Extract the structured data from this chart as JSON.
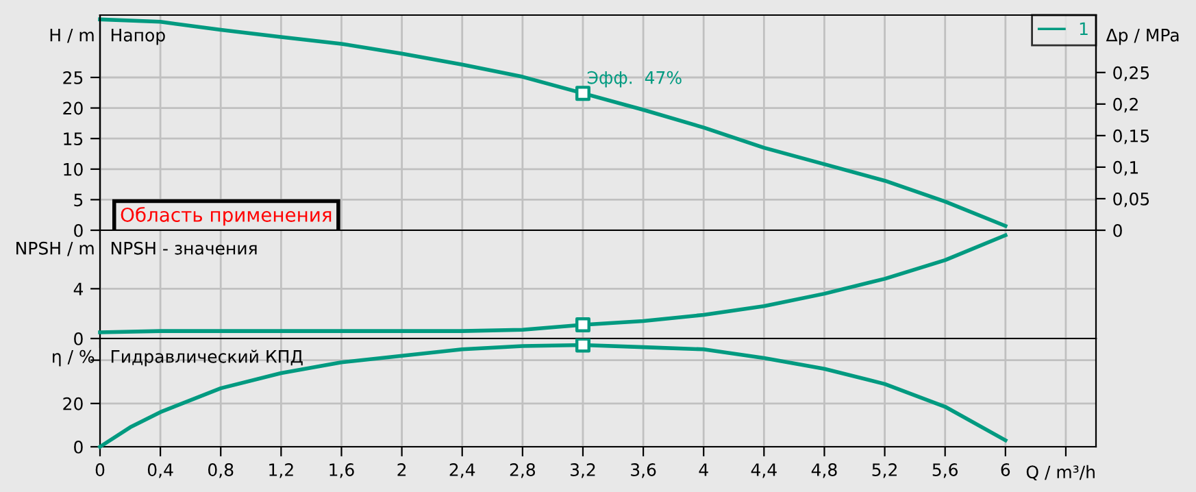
{
  "chart_data": [
    {
      "type": "line",
      "ylabel": "H / m",
      "y2label": "Δp / MPa",
      "annotations": [
        "Напор",
        {
          "text": "Эфф.  47%",
          "x": 3.2,
          "y": 22.4
        },
        "Область применения"
      ],
      "legend": "top right",
      "grid": true,
      "tick_labels": "y",
      "line_style": "solid",
      "x": [
        0,
        0.4,
        0.8,
        1.2,
        1.6,
        2.0,
        2.4,
        2.8,
        3.2,
        3.6,
        4.0,
        4.4,
        4.8,
        5.2,
        5.6,
        6.0
      ],
      "series": [
        {
          "name": "1",
          "color": "#009a80",
          "values": [
            34.5,
            34.1,
            32.8,
            31.6,
            30.5,
            28.9,
            27.1,
            25.1,
            22.4,
            19.7,
            16.8,
            13.5,
            10.8,
            8.1,
            4.7,
            0.7
          ]
        },
        {
          "type": "scatter",
          "marker": "square",
          "color": "#009a80",
          "values": [
            null,
            null,
            null,
            null,
            null,
            null,
            null,
            null,
            22.4,
            null,
            null,
            null,
            null,
            null,
            null,
            null
          ]
        }
      ],
      "xlim": [
        0,
        6.6
      ],
      "xticks": [
        0,
        0.4,
        0.8,
        1.2,
        1.6,
        2,
        2.4,
        2.8,
        3.2,
        3.6,
        4,
        4.4,
        4.8,
        5.2,
        5.6,
        6,
        6.4
      ],
      "ylim": [
        0,
        35.2
      ],
      "yticks": [
        0,
        5,
        10,
        15,
        20,
        25
      ],
      "y2lim": [
        0,
        0.341
      ],
      "y2ticks": [
        {
          "value": 0,
          "label": "0"
        },
        {
          "value": 0.05,
          "label": "0,05"
        },
        {
          "value": 0.1,
          "label": "0,1"
        },
        {
          "value": 0.15,
          "label": "0,15"
        },
        {
          "value": 0.2,
          "label": "0,2"
        },
        {
          "value": 0.25,
          "label": "0,25"
        }
      ]
    },
    {
      "type": "line",
      "ylabel": "NPSH / m",
      "annotations": [
        "NPSH - значения"
      ],
      "grid": true,
      "tick_labels": "y",
      "line_style": "solid",
      "x": [
        0,
        0.4,
        0.8,
        1.2,
        1.6,
        2.0,
        2.4,
        2.8,
        3.2,
        3.6,
        4.0,
        4.4,
        4.8,
        5.2,
        5.6,
        6.0
      ],
      "series": [
        {
          "color": "#009a80",
          "values": [
            0.5,
            0.6,
            0.6,
            0.6,
            0.6,
            0.6,
            0.6,
            0.7,
            1.1,
            1.4,
            1.9,
            2.6,
            3.6,
            4.8,
            6.3,
            8.3
          ]
        },
        {
          "type": "scatter",
          "marker": "square",
          "color": "#009a80",
          "values": [
            null,
            null,
            null,
            null,
            null,
            null,
            null,
            null,
            1.1,
            null,
            null,
            null,
            null,
            null,
            null,
            null
          ]
        }
      ],
      "xlim": [
        0,
        6.6
      ],
      "xticks": [
        0,
        0.4,
        0.8,
        1.2,
        1.6,
        2,
        2.4,
        2.8,
        3.2,
        3.6,
        4,
        4.4,
        4.8,
        5.2,
        5.6,
        6,
        6.4
      ],
      "ylim": [
        0,
        8.7
      ],
      "yticks": [
        0,
        4
      ]
    },
    {
      "type": "line",
      "ylabel": "η / %",
      "xlabel": "Q / m³/h",
      "annotations": [
        "Гидравлический КПД"
      ],
      "grid": true,
      "line_style": "solid",
      "x": [
        0,
        0.2,
        0.4,
        0.8,
        1.2,
        1.6,
        2.0,
        2.4,
        2.8,
        3.2,
        3.6,
        4.0,
        4.4,
        4.8,
        5.2,
        5.6,
        6.0
      ],
      "series": [
        {
          "color": "#009a80",
          "values": [
            0,
            9,
            16,
            27,
            34,
            39,
            42,
            45,
            46.5,
            47,
            46,
            45,
            41,
            36,
            29,
            18.5,
            3
          ]
        },
        {
          "type": "scatter",
          "marker": "square",
          "color": "#009a80",
          "values": [
            null,
            null,
            null,
            null,
            null,
            null,
            null,
            null,
            null,
            47,
            null,
            null,
            null,
            null,
            null,
            null,
            null
          ]
        }
      ],
      "xlim": [
        0,
        6.6
      ],
      "xticks": [
        0,
        {
          "value": 0.4,
          "label": "0,4"
        },
        {
          "value": 0.8,
          "label": "0,8"
        },
        {
          "value": 1.2,
          "label": "1,2"
        },
        {
          "value": 1.6,
          "label": "1,6"
        },
        2,
        {
          "value": 2.4,
          "label": "2,4"
        },
        {
          "value": 2.8,
          "label": "2,8"
        },
        {
          "value": 3.2,
          "label": "3,2"
        },
        {
          "value": 3.6,
          "label": "3,6"
        },
        4,
        {
          "value": 4.4,
          "label": "4,4"
        },
        {
          "value": 4.8,
          "label": "4,8"
        },
        {
          "value": 5.2,
          "label": "5,2"
        },
        {
          "value": 5.6,
          "label": "5,6"
        },
        6,
        {
          "value": 6.4,
          "label": null
        }
      ],
      "ylim": [
        0,
        50
      ],
      "yticks": [
        0,
        20,
        {
          "value": 40,
          "label": null
        }
      ]
    }
  ]
}
